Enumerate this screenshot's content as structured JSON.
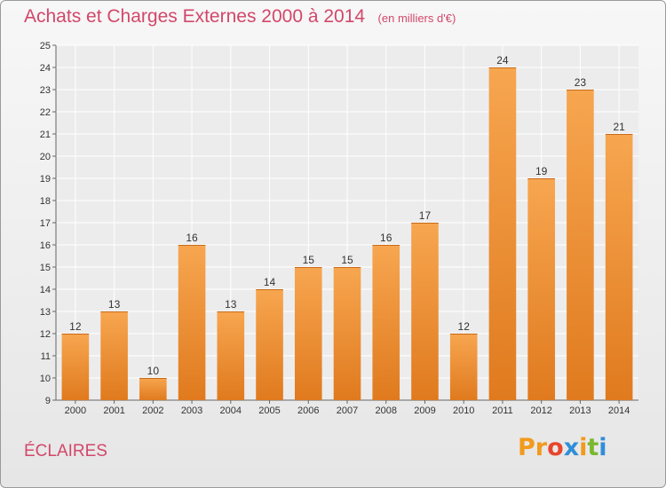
{
  "header": {
    "title": "Achats et Charges Externes 2000 à 2014",
    "subtitle": "(en milliers d'€)"
  },
  "footer": {
    "place": "ÉCLAIRES",
    "logo_letters": [
      "P",
      "r",
      "o",
      "x",
      "i",
      "t",
      "i"
    ],
    "logo_colors": [
      "#f29a1c",
      "#f29a1c",
      "#e8452c",
      "#2f8fd8",
      "#f29a1c",
      "#7ab82e",
      "#2f8fd8"
    ]
  },
  "colors": {
    "bar_light": "#f7a650",
    "bar_dark": "#e07a1e",
    "bar_top": "#c86a18",
    "accent": "#d2476a"
  },
  "chart_data": {
    "type": "bar",
    "title": "Achats et Charges Externes 2000 à 2014",
    "subtitle": "(en milliers d'€)",
    "xlabel": "",
    "ylabel": "",
    "categories": [
      "2000",
      "2001",
      "2002",
      "2003",
      "2004",
      "2005",
      "2006",
      "2007",
      "2008",
      "2009",
      "2010",
      "2011",
      "2012",
      "2013",
      "2014"
    ],
    "values": [
      12,
      13,
      10,
      16,
      13,
      14,
      15,
      15,
      16,
      17,
      12,
      24,
      19,
      23,
      21
    ],
    "ylim": [
      9,
      25
    ],
    "yticks": [
      9,
      10,
      11,
      12,
      13,
      14,
      15,
      16,
      17,
      18,
      19,
      20,
      21,
      22,
      23,
      24,
      25
    ],
    "grid": true,
    "data_labels": true
  }
}
